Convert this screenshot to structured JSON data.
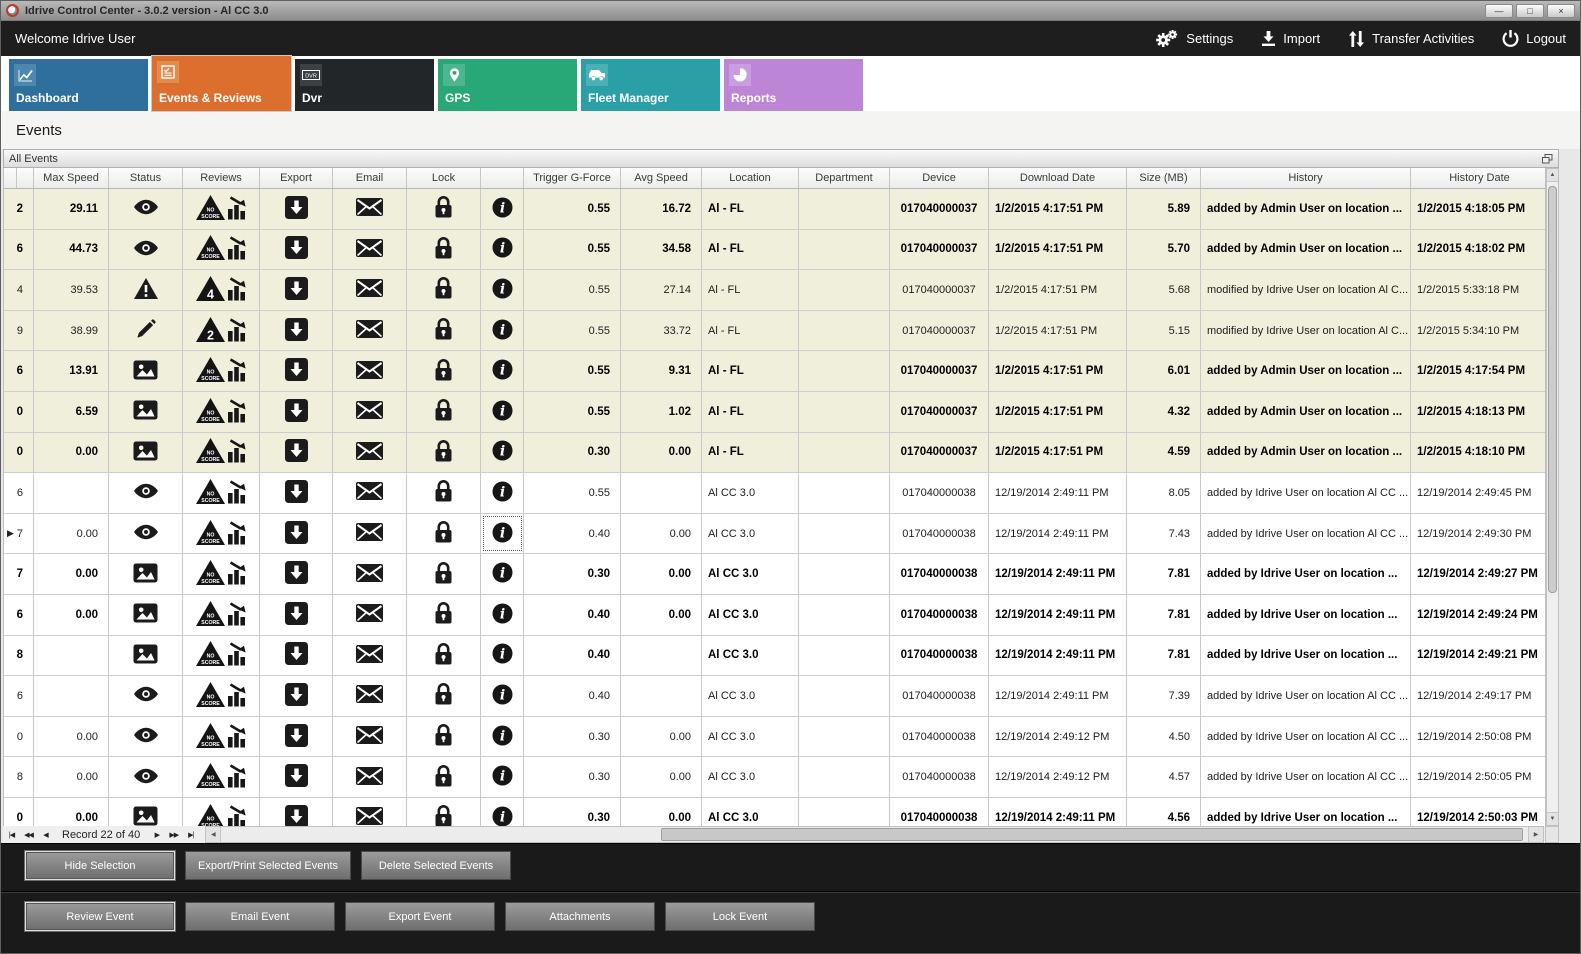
{
  "colors": {
    "topbar_bg": "#1e1e1e",
    "footer_bg": "#1a1a1a",
    "row_highlight": "#f0efdb",
    "icon_ink": "#1b1b1b"
  },
  "window": {
    "title": "Idrive Control Center - 3.0.2 version - Al CC 3.0",
    "controls": {
      "minimize": "—",
      "maximize": "□",
      "close": "×"
    }
  },
  "topbar": {
    "welcome": "Welcome Idrive User",
    "actions": [
      {
        "id": "settings",
        "label": "Settings"
      },
      {
        "id": "import",
        "label": "Import"
      },
      {
        "id": "transfer-activities",
        "label": "Transfer Activities"
      },
      {
        "id": "logout",
        "label": "Logout"
      }
    ]
  },
  "tabs": [
    {
      "id": "dashboard",
      "label": "Dashboard",
      "color": "#2f6f9e",
      "icon_bg": "#4d87ae",
      "active": false
    },
    {
      "id": "events-reviews",
      "label": "Events & Reviews",
      "color": "#dc6f2d",
      "icon_bg": "#e38a4f",
      "active": true
    },
    {
      "id": "dvr",
      "label": "Dvr",
      "color": "#232629",
      "icon_bg": "#3c4043",
      "active": false
    },
    {
      "id": "gps",
      "label": "GPS",
      "color": "#29a877",
      "icon_bg": "#4cb78e",
      "active": false
    },
    {
      "id": "fleet-manager",
      "label": "Fleet Manager",
      "color": "#2a9fa6",
      "icon_bg": "#4bb1b7",
      "active": false
    },
    {
      "id": "reports",
      "label": "Reports",
      "color": "#bc85d6",
      "icon_bg": "#ca9de0",
      "active": false
    }
  ],
  "page": {
    "title": "Events"
  },
  "panel": {
    "title": "All Events"
  },
  "table": {
    "columns": [
      "",
      "",
      "Max Speed",
      "Status",
      "Reviews",
      "Export",
      "Email",
      "Lock",
      "",
      "Trigger G-Force",
      "Avg Speed",
      "Location",
      "Department",
      "Device",
      "Download Date",
      "Size (MB)",
      "History",
      "History Date"
    ],
    "rows": [
      {
        "partial": "2",
        "max_speed": "29.11",
        "status": "eye",
        "review": "NO SCORE",
        "trigger": "0.55",
        "avg_speed": "16.72",
        "location": "Al - FL",
        "department": "",
        "device": "017040000037",
        "download_date": "1/2/2015 4:17:51 PM",
        "size": "5.89",
        "history": "added by Admin User on location ...",
        "history_date": "1/2/2015 4:18:05 PM",
        "bold": true,
        "highlight": true,
        "marker": false,
        "focus": false
      },
      {
        "partial": "6",
        "max_speed": "44.73",
        "status": "eye",
        "review": "NO SCORE",
        "trigger": "0.55",
        "avg_speed": "34.58",
        "location": "Al - FL",
        "department": "",
        "device": "017040000037",
        "download_date": "1/2/2015 4:17:51 PM",
        "size": "5.70",
        "history": "added by Admin User on location ...",
        "history_date": "1/2/2015 4:18:02 PM",
        "bold": true,
        "highlight": true,
        "marker": false,
        "focus": false
      },
      {
        "partial": "4",
        "max_speed": "39.53",
        "status": "warning",
        "review": "4",
        "trigger": "0.55",
        "avg_speed": "27.14",
        "location": "Al - FL",
        "department": "",
        "device": "017040000037",
        "download_date": "1/2/2015 4:17:51 PM",
        "size": "5.68",
        "history": "modified by Idrive User on location Al C...",
        "history_date": "1/2/2015 5:33:18 PM",
        "bold": false,
        "highlight": true,
        "marker": false,
        "focus": false
      },
      {
        "partial": "9",
        "max_speed": "38.99",
        "status": "edit",
        "review": "2",
        "trigger": "0.55",
        "avg_speed": "33.72",
        "location": "Al - FL",
        "department": "",
        "device": "017040000037",
        "download_date": "1/2/2015 4:17:51 PM",
        "size": "5.15",
        "history": "modified by Idrive User on location Al C...",
        "history_date": "1/2/2015 5:34:10 PM",
        "bold": false,
        "highlight": true,
        "marker": false,
        "focus": false
      },
      {
        "partial": "6",
        "max_speed": "13.91",
        "status": "image",
        "review": "NO SCORE",
        "trigger": "0.55",
        "avg_speed": "9.31",
        "location": "Al - FL",
        "department": "",
        "device": "017040000037",
        "download_date": "1/2/2015 4:17:51 PM",
        "size": "6.01",
        "history": "added by Admin User on location ...",
        "history_date": "1/2/2015 4:17:54 PM",
        "bold": true,
        "highlight": true,
        "marker": false,
        "focus": false
      },
      {
        "partial": "0",
        "max_speed": "6.59",
        "status": "image",
        "review": "NO SCORE",
        "trigger": "0.55",
        "avg_speed": "1.02",
        "location": "Al - FL",
        "department": "",
        "device": "017040000037",
        "download_date": "1/2/2015 4:17:51 PM",
        "size": "4.32",
        "history": "added by Admin User on location ...",
        "history_date": "1/2/2015 4:18:13 PM",
        "bold": true,
        "highlight": true,
        "marker": false,
        "focus": false
      },
      {
        "partial": "0",
        "max_speed": "0.00",
        "status": "image",
        "review": "NO SCORE",
        "trigger": "0.30",
        "avg_speed": "0.00",
        "location": "Al - FL",
        "department": "",
        "device": "017040000037",
        "download_date": "1/2/2015 4:17:51 PM",
        "size": "4.59",
        "history": "added by Admin User on location ...",
        "history_date": "1/2/2015 4:18:10 PM",
        "bold": true,
        "highlight": true,
        "marker": false,
        "focus": false
      },
      {
        "partial": "6",
        "max_speed": "",
        "status": "eye",
        "review": "NO SCORE",
        "trigger": "0.55",
        "avg_speed": "",
        "location": "Al CC 3.0",
        "department": "",
        "device": "017040000038",
        "download_date": "12/19/2014 2:49:11 PM",
        "size": "8.05",
        "history": "added by Idrive User on location Al CC ...",
        "history_date": "12/19/2014 2:49:45 PM",
        "bold": false,
        "highlight": false,
        "marker": false,
        "focus": false
      },
      {
        "partial": "7",
        "max_speed": "0.00",
        "status": "eye",
        "review": "NO SCORE",
        "trigger": "0.40",
        "avg_speed": "0.00",
        "location": "Al CC 3.0",
        "department": "",
        "device": "017040000038",
        "download_date": "12/19/2014 2:49:11 PM",
        "size": "7.43",
        "history": "added by Idrive User on location Al CC ...",
        "history_date": "12/19/2014 2:49:30 PM",
        "bold": false,
        "highlight": false,
        "marker": true,
        "focus": true
      },
      {
        "partial": "7",
        "max_speed": "0.00",
        "status": "image",
        "review": "NO SCORE",
        "trigger": "0.30",
        "avg_speed": "0.00",
        "location": "Al CC 3.0",
        "department": "",
        "device": "017040000038",
        "download_date": "12/19/2014 2:49:11 PM",
        "size": "7.81",
        "history": "added by Idrive User on location ...",
        "history_date": "12/19/2014 2:49:27 PM",
        "bold": true,
        "highlight": false,
        "marker": false,
        "focus": false
      },
      {
        "partial": "6",
        "max_speed": "0.00",
        "status": "image",
        "review": "NO SCORE",
        "trigger": "0.40",
        "avg_speed": "0.00",
        "location": "Al CC 3.0",
        "department": "",
        "device": "017040000038",
        "download_date": "12/19/2014 2:49:11 PM",
        "size": "7.81",
        "history": "added by Idrive User on location ...",
        "history_date": "12/19/2014 2:49:24 PM",
        "bold": true,
        "highlight": false,
        "marker": false,
        "focus": false
      },
      {
        "partial": "8",
        "max_speed": "",
        "status": "image",
        "review": "NO SCORE",
        "trigger": "0.40",
        "avg_speed": "",
        "location": "Al CC 3.0",
        "department": "",
        "device": "017040000038",
        "download_date": "12/19/2014 2:49:11 PM",
        "size": "7.81",
        "history": "added by Idrive User on location ...",
        "history_date": "12/19/2014 2:49:21 PM",
        "bold": true,
        "highlight": false,
        "marker": false,
        "focus": false
      },
      {
        "partial": "6",
        "max_speed": "",
        "status": "eye",
        "review": "NO SCORE",
        "trigger": "0.40",
        "avg_speed": "",
        "location": "Al CC 3.0",
        "department": "",
        "device": "017040000038",
        "download_date": "12/19/2014 2:49:11 PM",
        "size": "7.39",
        "history": "added by Idrive User on location Al CC ...",
        "history_date": "12/19/2014 2:49:17 PM",
        "bold": false,
        "highlight": false,
        "marker": false,
        "focus": false
      },
      {
        "partial": "0",
        "max_speed": "0.00",
        "status": "eye",
        "review": "NO SCORE",
        "trigger": "0.30",
        "avg_speed": "0.00",
        "location": "Al CC 3.0",
        "department": "",
        "device": "017040000038",
        "download_date": "12/19/2014 2:49:12 PM",
        "size": "4.50",
        "history": "added by Idrive User on location Al CC ...",
        "history_date": "12/19/2014 2:50:08 PM",
        "bold": false,
        "highlight": false,
        "marker": false,
        "focus": false
      },
      {
        "partial": "8",
        "max_speed": "0.00",
        "status": "eye",
        "review": "NO SCORE",
        "trigger": "0.30",
        "avg_speed": "0.00",
        "location": "Al CC 3.0",
        "department": "",
        "device": "017040000038",
        "download_date": "12/19/2014 2:49:12 PM",
        "size": "4.57",
        "history": "added by Idrive User on location Al CC ...",
        "history_date": "12/19/2014 2:50:05 PM",
        "bold": false,
        "highlight": false,
        "marker": false,
        "focus": false
      },
      {
        "partial": "0",
        "max_speed": "0.00",
        "status": "image",
        "review": "NO SCORE",
        "trigger": "0.30",
        "avg_speed": "0.00",
        "location": "Al CC 3.0",
        "department": "",
        "device": "017040000038",
        "download_date": "12/19/2014 2:49:11 PM",
        "size": "4.56",
        "history": "added by Idrive User on location ...",
        "history_date": "12/19/2014 2:50:03 PM",
        "bold": true,
        "highlight": false,
        "marker": false,
        "focus": false
      }
    ]
  },
  "navigator": {
    "record_label": "Record 22 of 40",
    "left_buttons": [
      {
        "id": "first",
        "glyph": "|◀"
      },
      {
        "id": "prev-page",
        "glyph": "◀◀"
      },
      {
        "id": "prev",
        "glyph": "◀"
      }
    ],
    "right_buttons": [
      {
        "id": "next",
        "glyph": "▶"
      },
      {
        "id": "next-page",
        "glyph": "▶▶"
      },
      {
        "id": "last",
        "glyph": "▶|"
      }
    ]
  },
  "glyphs": {
    "left": "◀",
    "right": "▶",
    "up": "▲",
    "down": "▼",
    "row_marker": "▶"
  },
  "footer": {
    "selection_buttons": [
      "Hide Selection",
      "Export/Print Selected Events",
      "Delete Selected Events"
    ],
    "event_buttons": [
      "Review Event",
      "Email Event",
      "Export Event",
      "Attachments",
      "Lock Event"
    ]
  }
}
